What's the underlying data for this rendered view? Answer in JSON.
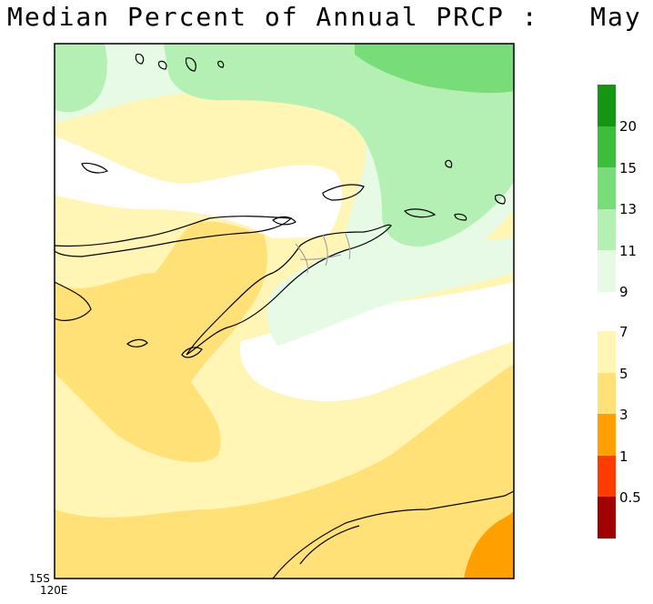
{
  "title": "Median Percent of Annual PRCP :   May",
  "map": {
    "corner_lat": "15S",
    "corner_lon": "120E"
  },
  "legend": {
    "upper": [
      {
        "label": "20",
        "color": "#149614"
      },
      {
        "label": "15",
        "color": "#3cbe3c"
      },
      {
        "label": "13",
        "color": "#78dc78"
      },
      {
        "label": "11",
        "color": "#b4f0b4"
      },
      {
        "label": "9",
        "color": "#e6fae6"
      }
    ],
    "lower": [
      {
        "label": "7",
        "color": "#fff5b4"
      },
      {
        "label": "5",
        "color": "#ffe178"
      },
      {
        "label": "3",
        "color": "#ffa000"
      },
      {
        "label": "1",
        "color": "#ff3c00"
      },
      {
        "label": "0.5",
        "color": "#a00000"
      }
    ]
  },
  "colors": {
    "white_band": "#ffffff",
    "coastline": "#000000",
    "border": "#999999"
  }
}
